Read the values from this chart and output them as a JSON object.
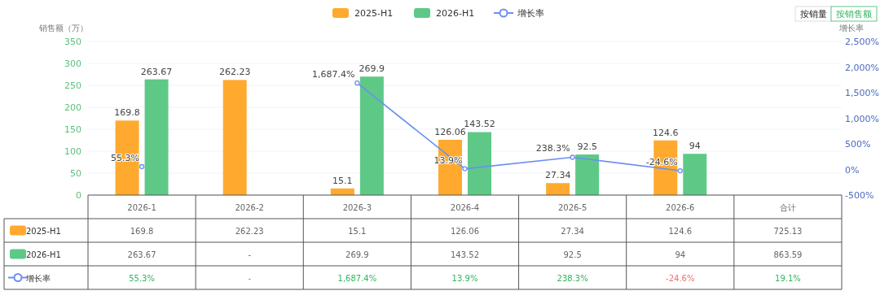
{
  "chart_data": {
    "type": "bar",
    "categories": [
      "2026-1",
      "2026-2",
      "2026-3",
      "2026-4",
      "2026-5",
      "2026-6",
      "合计"
    ],
    "ylabel": "销售额（万）",
    "y2label": "增长率",
    "ylim": [
      0,
      350
    ],
    "yticks": [
      0,
      50,
      100,
      150,
      200,
      250,
      300,
      350
    ],
    "y2lim": [
      -500,
      2500
    ],
    "y2ticks": [
      {
        "value": -500,
        "label": "-500%"
      },
      {
        "value": 0,
        "label": "0%"
      },
      {
        "value": 500,
        "label": "500%"
      },
      {
        "value": 1000,
        "label": "1,000%"
      },
      {
        "value": 1500,
        "label": "1,500%"
      },
      {
        "value": 2000,
        "label": "2,000%"
      },
      {
        "value": 2500,
        "label": "2,500%"
      }
    ],
    "grid": "y",
    "legend": "top",
    "marker": "circle",
    "series": [
      {
        "name": "2025-H1",
        "color": "#ffaa2e",
        "values": [
          169.8,
          262.23,
          15.1,
          126.06,
          27.34,
          124.6,
          null
        ],
        "value_labels": [
          "169.8",
          "262.23",
          "15.1",
          "126.06",
          "27.34",
          "124.6",
          "725.13"
        ]
      },
      {
        "name": "2026-H1",
        "color": "#5ec987",
        "values": [
          263.67,
          null,
          269.9,
          143.52,
          92.5,
          94,
          null
        ],
        "value_labels": [
          "263.67",
          "-",
          "269.9",
          "143.52",
          "92.5",
          "94",
          "863.59"
        ]
      },
      {
        "name": "增长率",
        "type": "line",
        "axis": "y2",
        "color": "#6b8ff0",
        "values": [
          55.3,
          null,
          1687.4,
          13.9,
          238.3,
          -24.6,
          null
        ],
        "value_labels": [
          "55.3%",
          "-",
          "1,687.4%",
          "13.9%",
          "238.3%",
          "-24.6%",
          "19.1%"
        ]
      }
    ],
    "annotations": [
      "按销量",
      "按销售额"
    ]
  }
}
